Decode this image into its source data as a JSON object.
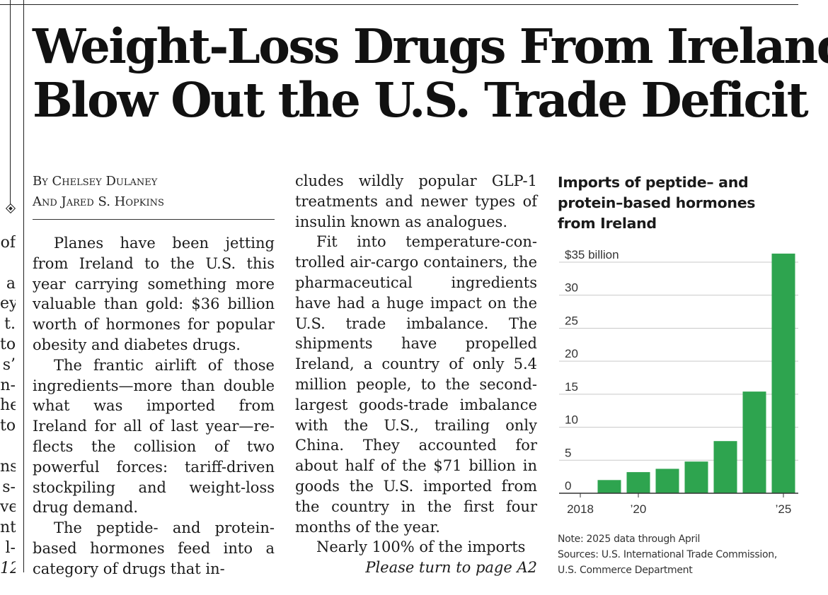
{
  "left_fragments": [
    "of",
    "",
    "a",
    "ey",
    "t.",
    "to",
    "s’",
    "n-",
    "he",
    "to",
    "",
    "ns",
    "s-",
    "ve",
    "nt",
    "l-",
    "12"
  ],
  "headline": {
    "line1": "Weight-Loss Drugs From Ireland",
    "line2": "Blow Out the U.S. Trade Deficit"
  },
  "byline": {
    "line1": "By Chelsey Dulaney",
    "line2": "And Jared S. Hopkins"
  },
  "article": {
    "col1_p1": "Planes have been jetting from Ireland to the U.S. this year carrying something more valuable than gold: $36 billion worth of hormones for popu­lar obesity and diabetes drugs.",
    "col1_p2": "The frantic airlift of those ingredients—more than dou­ble what was imported from Ireland for all of last year—re­flects the collision of two powerful forces: tariff-driven stockpiling and weight-loss drug demand.",
    "col1_p3": "The peptide- and protein-based hormones feed into a category of drugs that in-",
    "col2_p1": "cludes wildly popular GLP-1 treatments and newer types of insulin known as analogues.",
    "col2_p2": "Fit into temperature-con­trolled air-cargo containers, the pharmaceutical ingredi­ents have had a huge impact on the U.S. trade imbalance. The shipments have propelled Ireland, a country of only 5.4 million people, to the second-largest goods-trade imbalance with the U.S., trailing only China. They accounted for about half of the $71 billion in goods the U.S. imported from the country in the first four months of the year.",
    "col2_p3": "Nearly 100% of the imports",
    "jump": "Please turn to page A2"
  },
  "chart_title": {
    "line1": "Imports of peptide– and",
    "line2": "protein–based hormones",
    "line3": "from Ireland"
  },
  "chart_data": {
    "type": "bar",
    "title": "Imports of peptide– and protein–based hormones from Ireland",
    "xlabel": "",
    "ylabel": "",
    "unit_label": "$35 billion",
    "categories": [
      "2018",
      "2019",
      "2020",
      "2021",
      "2022",
      "2023",
      "2024",
      "2025"
    ],
    "values": [
      0.05,
      2.0,
      3.2,
      3.7,
      4.8,
      7.9,
      15.4,
      36.3
    ],
    "x_tick_labels": [
      {
        "category": "2018",
        "label": "2018"
      },
      {
        "category": "2020",
        "label": "’20"
      },
      {
        "category": "2025",
        "label": "’25"
      }
    ],
    "y_ticks": [
      {
        "value": 0,
        "label": "0"
      },
      {
        "value": 5,
        "label": "5"
      },
      {
        "value": 10,
        "label": "10"
      },
      {
        "value": 15,
        "label": "15"
      },
      {
        "value": 20,
        "label": "20"
      },
      {
        "value": 25,
        "label": "25"
      },
      {
        "value": 30,
        "label": "30"
      },
      {
        "value": 35,
        "label": "$35 billion"
      }
    ],
    "ylim": [
      0,
      36.5
    ],
    "grid": true,
    "bar_color": "#2ea44f"
  },
  "note": {
    "line1": "Note: 2025 data through April",
    "line2": "Sources: U.S. International Trade Commission,",
    "line3": "U.S. Commerce Department"
  }
}
